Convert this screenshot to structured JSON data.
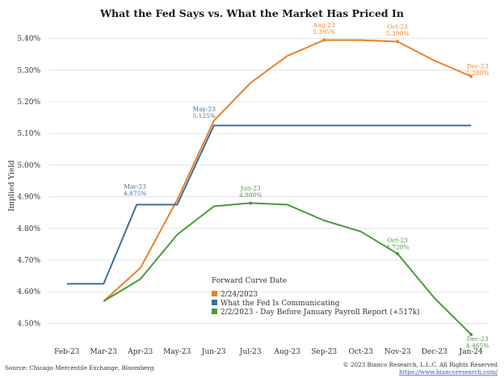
{
  "chart_data": {
    "type": "line",
    "title": "What the Fed Says vs. What the Market Has Priced In",
    "ylabel": "Implied Yield",
    "ylim": [
      4.45,
      5.45
    ],
    "yticks": [
      "4.50%",
      "4.60%",
      "4.70%",
      "4.80%",
      "4.90%",
      "5.00%",
      "5.10%",
      "5.20%",
      "5.30%",
      "5.40%"
    ],
    "categories": [
      "Feb-23",
      "Mar-23",
      "Apr-23",
      "May-23",
      "Jun-23",
      "Jul-23",
      "Aug-23",
      "Sep-23",
      "Oct-23",
      "Nov-23",
      "Dec-23",
      "Jan-24"
    ],
    "grid": true,
    "legend": {
      "title": "Forward Curve Date",
      "position": "lower-center"
    },
    "series": [
      {
        "name": "2/24/2023",
        "color": "#e8822a",
        "x": [
          1,
          2,
          3,
          4,
          5,
          6,
          7,
          8,
          9,
          10,
          11
        ],
        "values": [
          4.57,
          4.675,
          4.89,
          5.14,
          5.26,
          5.345,
          5.395,
          5.395,
          5.39,
          5.33,
          5.28
        ],
        "annotations": [
          {
            "idx": 6,
            "lines": [
              "Aug-23",
              "5.395%"
            ]
          },
          {
            "idx": 8,
            "lines": [
              "Oct-23",
              "5.390%"
            ]
          },
          {
            "idx": 10,
            "lines": [
              "Dec-23",
              "5.280%"
            ]
          }
        ]
      },
      {
        "name": "What the Fed Is Communicating",
        "color": "#3c6e9e",
        "x": [
          0,
          1,
          1.9,
          3,
          4,
          11
        ],
        "values": [
          4.625,
          4.625,
          4.875,
          4.875,
          5.125,
          5.125
        ],
        "annotations": [
          {
            "idx": 2,
            "lines": [
              "Mar-23",
              "4.875%"
            ]
          },
          {
            "idx": 4,
            "lines": [
              "May-23",
              "5.125%"
            ]
          }
        ]
      },
      {
        "name": "2/2/2023 - Day Before January Payroll Report (+517k)",
        "color": "#4a9a3c",
        "x": [
          1,
          2,
          3,
          4,
          5,
          6,
          7,
          8,
          9,
          10,
          11
        ],
        "values": [
          4.57,
          4.64,
          4.78,
          4.87,
          4.88,
          4.875,
          4.825,
          4.79,
          4.72,
          4.58,
          4.465
        ],
        "annotations": [
          {
            "idx": 4,
            "lines": [
              "Jun-23",
              "4.880%"
            ]
          },
          {
            "idx": 8,
            "lines": [
              "Oct-23",
              "4.720%"
            ]
          },
          {
            "idx": 10,
            "lines": [
              "Dec-23",
              "4.465%"
            ]
          }
        ]
      }
    ]
  },
  "footer": {
    "source": "Source: Chicago Mercentile Exchange, Bloomberg",
    "copyright": "© 2023 Bianco Research, L.L.C. All Rights Reserved",
    "url": "https://www.biancoresearch.com/"
  }
}
